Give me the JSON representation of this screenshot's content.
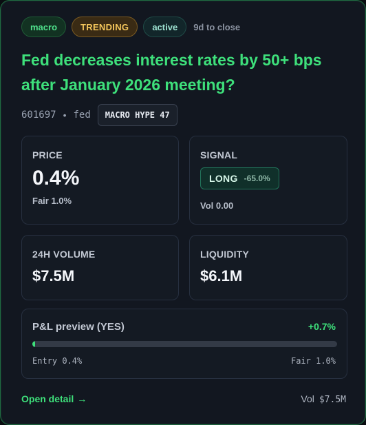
{
  "tags": {
    "category": "macro",
    "trending": "TRENDING",
    "status": "active",
    "close_in": "9d to close"
  },
  "market": {
    "title": "Fed decreases interest rates by 50+ bps after January 2026 meeting?",
    "id": "601697",
    "separator": "•",
    "category": "fed",
    "hype_badge": "MACRO HYPE 47"
  },
  "price": {
    "label": "PRICE",
    "value": "0.4%",
    "fair": "Fair 1.0%"
  },
  "signal": {
    "label": "SIGNAL",
    "direction": "LONG",
    "edge": "-65.0%",
    "volume": "Vol 0.00"
  },
  "volume_24h": {
    "label": "24H VOLUME",
    "value": "$7.5M"
  },
  "liquidity": {
    "label": "LIQUIDITY",
    "value": "$6.1M"
  },
  "pnl": {
    "label": "P&L preview (YES)",
    "value": "+0.7%",
    "progress_fraction": 0.01,
    "entry": "Entry 0.4%",
    "fair": "Fair 1.0%"
  },
  "footer": {
    "open_detail": "Open detail",
    "arrow": "→",
    "vol_label": "Vol",
    "vol_value": "$7.5M"
  },
  "colors": {
    "accent_green": "#3ee07b",
    "trending_gold": "#f3c55b",
    "card_border": "#1f6b40"
  }
}
